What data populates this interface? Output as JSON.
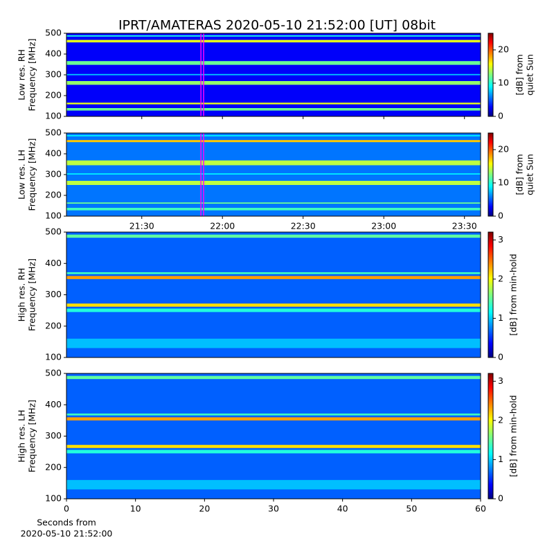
{
  "chart_data": [
    {
      "type": "heatmap",
      "title": "IPRT/AMATERAS 2020-05-10 21:52:00 [UT]   08bit",
      "ylabel": [
        "Low res. RH",
        "Frequency [MHz]"
      ],
      "ylim": [
        100,
        500
      ],
      "yticks": [
        100,
        200,
        300,
        400,
        500
      ],
      "xlim": [
        "21:02",
        "23:36"
      ],
      "sharex": true,
      "clim": [
        0,
        25
      ],
      "cticks": [
        0,
        10,
        20
      ],
      "clabel": [
        "[dB] from",
        "quiet Sun"
      ],
      "background": 3,
      "window": [
        "21:52",
        "21:53"
      ],
      "bands": [
        {
          "y": [
            128,
            140
          ],
          "value": 12
        },
        {
          "y": [
            158,
            166
          ],
          "value": 15
        },
        {
          "y": [
            252,
            270
          ],
          "value": 13
        },
        {
          "y": [
            298,
            304
          ],
          "value": 8
        },
        {
          "y": [
            348,
            366
          ],
          "value": 12
        },
        {
          "y": [
            456,
            468
          ],
          "value": 15
        },
        {
          "y": [
            484,
            490
          ],
          "value": 10
        }
      ]
    },
    {
      "type": "heatmap",
      "ylabel": [
        "Low res. LH",
        "Frequency [MHz]"
      ],
      "ylim": [
        100,
        500
      ],
      "yticks": [
        100,
        200,
        300,
        400,
        500
      ],
      "xlim": [
        "21:02",
        "23:36"
      ],
      "xticks": [
        "21:30",
        "22:00",
        "22:30",
        "23:00",
        "23:30"
      ],
      "clim": [
        0,
        25
      ],
      "cticks": [
        0,
        10,
        20
      ],
      "clabel": [
        "[dB] from",
        "quiet Sun"
      ],
      "background": 6,
      "window": [
        "21:52",
        "21:53"
      ],
      "bands": [
        {
          "y": [
            128,
            140
          ],
          "value": 11
        },
        {
          "y": [
            160,
            166
          ],
          "value": 12
        },
        {
          "y": [
            250,
            270
          ],
          "value": 14
        },
        {
          "y": [
            300,
            306
          ],
          "value": 9
        },
        {
          "y": [
            345,
            368
          ],
          "value": 14
        },
        {
          "y": [
            456,
            466
          ],
          "value": 17
        },
        {
          "y": [
            484,
            490
          ],
          "value": 9
        }
      ]
    },
    {
      "type": "heatmap",
      "ylabel": [
        "High res. RH",
        "Frequency [MHz]"
      ],
      "ylim": [
        100,
        500
      ],
      "yticks": [
        100,
        200,
        300,
        400,
        500
      ],
      "xlim": [
        0,
        60
      ],
      "clim": [
        0,
        3.2
      ],
      "cticks": [
        0,
        1,
        2,
        3
      ],
      "clabel": [
        "[dB] from min-hold"
      ],
      "background": 0.7,
      "bands": [
        {
          "y": [
            130,
            160
          ],
          "value": 1
        },
        {
          "y": [
            245,
            256
          ],
          "value": 1.3
        },
        {
          "y": [
            262,
            272
          ],
          "value": 2.1
        },
        {
          "y": [
            350,
            360
          ],
          "value": 2.3
        },
        {
          "y": [
            366,
            372
          ],
          "value": 1.4
        },
        {
          "y": [
            482,
            492
          ],
          "value": 1.5
        }
      ]
    },
    {
      "type": "heatmap",
      "ylabel": [
        "High res. LH",
        "Frequency [MHz]"
      ],
      "ylim": [
        100,
        500
      ],
      "yticks": [
        100,
        200,
        300,
        400,
        500
      ],
      "xlim": [
        0,
        60
      ],
      "xticks": [
        0,
        10,
        20,
        30,
        40,
        50,
        60
      ],
      "xlabel": [
        "Seconds from",
        "2020-05-10 21:52:00"
      ],
      "clim": [
        0,
        3.2
      ],
      "cticks": [
        0,
        1,
        2,
        3
      ],
      "clabel": [
        "[dB] from min-hold"
      ],
      "background": 0.7,
      "bands": [
        {
          "y": [
            130,
            160
          ],
          "value": 1
        },
        {
          "y": [
            245,
            256
          ],
          "value": 1.3
        },
        {
          "y": [
            262,
            272
          ],
          "value": 2.1
        },
        {
          "y": [
            350,
            360
          ],
          "value": 2.3
        },
        {
          "y": [
            366,
            372
          ],
          "value": 1.4
        },
        {
          "y": [
            482,
            492
          ],
          "value": 1.5
        }
      ]
    }
  ]
}
